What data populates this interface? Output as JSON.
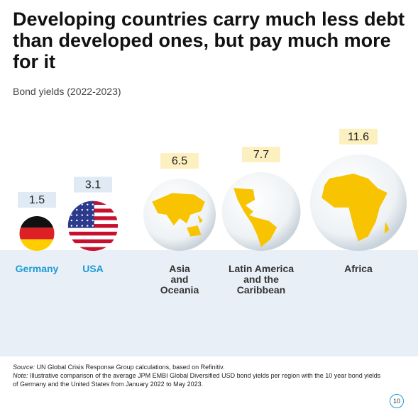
{
  "chart_data": {
    "type": "bubble",
    "title": "Developing countries carry much less debt than developed ones, but pay much more for it",
    "subtitle": "Bond yields (2022-2023)",
    "categories": [
      "Germany",
      "USA",
      "Asia\nand\nOceania",
      "Latin America\nand the\nCaribbean",
      "Africa"
    ],
    "values": [
      1.5,
      3.1,
      6.5,
      7.7,
      11.6
    ],
    "category_colors": [
      "#1a9bd7",
      "#1a9bd7",
      "#333333",
      "#333333",
      "#333333"
    ],
    "label_box_color": "#dfeaf4",
    "label_box_color_developing": "#fdf0c0",
    "source_label": "Source:",
    "source": "UN Global Crisis Response Group calculations, based on Refinitiv.",
    "note_label": "Note:",
    "note": "Illustrative comparison of the average JPM EMBI Global Diversified USD bond yields per region with the 10 year bond yields of Germany and the United States from January 2022 to May 2023.",
    "page_number": "10"
  }
}
